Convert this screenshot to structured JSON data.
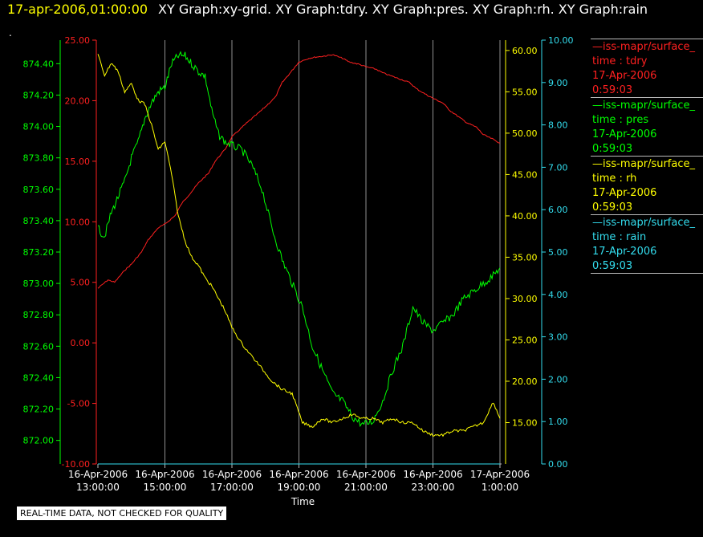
{
  "header": {
    "timestamp": "17-apr-2006,01:00:00",
    "graphs": "XY Graph:xy-grid.  XY Graph:tdry.  XY Graph:pres.  XY Graph:rh.  XY Graph:rain"
  },
  "marker": ".",
  "footer": "REAL-TIME DATA, NOT CHECKED FOR QUALITY",
  "legend": [
    {
      "source": "—iss-mapr/surface_",
      "var": "time : tdry",
      "date": "17-Apr-2006",
      "time": "0:59:03",
      "color": "#ff2020"
    },
    {
      "source": "—iss-mapr/surface_",
      "var": "time : pres",
      "date": "17-Apr-2006",
      "time": "0:59:03",
      "color": "#00ff00"
    },
    {
      "source": "—iss-mapr/surface_",
      "var": "time : rh",
      "date": "17-Apr-2006",
      "time": "0:59:03",
      "color": "#ffff00"
    },
    {
      "source": "—iss-mapr/surface_",
      "var": "time : rain",
      "date": "17-Apr-2006",
      "time": "0:59:03",
      "color": "#33ddee"
    }
  ],
  "chart_data": {
    "type": "line",
    "title": "",
    "xlabel": "Time",
    "x_ticks": [
      {
        "date": "16-Apr-2006",
        "time": "13:00:00",
        "h": 0
      },
      {
        "date": "16-Apr-2006",
        "time": "15:00:00",
        "h": 2
      },
      {
        "date": "16-Apr-2006",
        "time": "17:00:00",
        "h": 4
      },
      {
        "date": "16-Apr-2006",
        "time": "19:00:00",
        "h": 6
      },
      {
        "date": "16-Apr-2006",
        "time": "21:00:00",
        "h": 8
      },
      {
        "date": "16-Apr-2006",
        "time": "23:00:00",
        "h": 10
      },
      {
        "date": "17-Apr-2006",
        "time": "1:00:00",
        "h": 12
      }
    ],
    "xlim": [
      0,
      12
    ],
    "grid": "vertical",
    "axes": [
      {
        "series": "pres",
        "side": "left",
        "color": "#00ff00",
        "ylim": [
          871.85,
          874.55
        ],
        "ticks": [
          "872.00",
          "872.20",
          "872.40",
          "872.60",
          "872.80",
          "873.00",
          "873.20",
          "873.40",
          "873.60",
          "873.80",
          "874.00",
          "874.20",
          "874.40"
        ]
      },
      {
        "series": "tdry",
        "side": "left",
        "color": "#ff2020",
        "ylim": [
          -10,
          25
        ],
        "ticks": [
          "-10.00",
          "-5.00",
          "0.00",
          "5.00",
          "10.00",
          "15.00",
          "20.00",
          "25.00"
        ]
      },
      {
        "series": "rh",
        "side": "right",
        "color": "#ffff00",
        "ylim": [
          10,
          61.25
        ],
        "ticks": [
          "15.00",
          "20.00",
          "25.00",
          "30.00",
          "35.00",
          "40.00",
          "45.00",
          "50.00",
          "55.00",
          "60.00"
        ]
      },
      {
        "series": "rain",
        "side": "right",
        "color": "#33ddee",
        "ylim": [
          0,
          10
        ],
        "ticks": [
          "0.00",
          "1.00",
          "2.00",
          "3.00",
          "4.00",
          "5.00",
          "6.00",
          "7.00",
          "8.00",
          "9.00",
          "10.00"
        ]
      }
    ],
    "series": [
      {
        "name": "tdry",
        "color": "#ff2020",
        "x": [
          0,
          0.3,
          0.5,
          0.8,
          1.0,
          1.3,
          1.5,
          1.8,
          2.0,
          2.3,
          2.5,
          2.8,
          3.0,
          3.3,
          3.5,
          3.8,
          4.0,
          4.3,
          4.5,
          4.8,
          5.0,
          5.3,
          5.5,
          5.8,
          6.0,
          6.3,
          6.5,
          6.8,
          7.0,
          7.3,
          7.5,
          7.8,
          8.0,
          8.3,
          8.5,
          8.8,
          9.0,
          9.3,
          9.5,
          9.8,
          10.0,
          10.3,
          10.5,
          10.8,
          11.0,
          11.3,
          11.5,
          11.8,
          12.0
        ],
        "y": [
          4.5,
          5.2,
          5.0,
          6.0,
          6.5,
          7.5,
          8.5,
          9.5,
          9.8,
          10.5,
          11.5,
          12.5,
          13.2,
          14.0,
          15.0,
          16.0,
          17.0,
          17.8,
          18.3,
          19.0,
          19.5,
          20.3,
          21.5,
          22.5,
          23.2,
          23.5,
          23.6,
          23.7,
          23.8,
          23.5,
          23.2,
          23.0,
          22.8,
          22.6,
          22.3,
          22.0,
          21.8,
          21.5,
          21.0,
          20.5,
          20.2,
          19.8,
          19.2,
          18.6,
          18.2,
          17.8,
          17.2,
          16.8,
          16.5
        ]
      },
      {
        "series_note": "",
        "name": "pres",
        "color": "#00ff00",
        "x": [
          0,
          0.2,
          0.4,
          0.6,
          0.8,
          1.0,
          1.2,
          1.4,
          1.6,
          1.8,
          2.0,
          2.2,
          2.4,
          2.6,
          2.8,
          3.0,
          3.2,
          3.4,
          3.6,
          3.8,
          4.0,
          4.3,
          4.6,
          4.9,
          5.2,
          5.5,
          5.8,
          6.1,
          6.4,
          6.7,
          7.0,
          7.3,
          7.6,
          7.9,
          8.2,
          8.5,
          8.8,
          9.1,
          9.4,
          9.7,
          10.0,
          10.3,
          10.6,
          10.9,
          11.2,
          11.5,
          11.8,
          12.0
        ],
        "y": [
          873.35,
          873.3,
          873.45,
          873.55,
          873.65,
          873.8,
          873.9,
          874.05,
          874.15,
          874.22,
          874.25,
          874.4,
          874.45,
          874.45,
          874.4,
          874.35,
          874.32,
          874.1,
          873.95,
          873.9,
          873.88,
          873.85,
          873.75,
          873.6,
          873.35,
          873.15,
          873.0,
          872.85,
          872.6,
          872.45,
          872.3,
          872.25,
          872.15,
          872.1,
          872.12,
          872.25,
          872.45,
          872.6,
          872.85,
          872.75,
          872.7,
          872.75,
          872.8,
          872.9,
          872.95,
          873.0,
          873.05,
          873.1
        ]
      },
      {
        "name": "rh",
        "color": "#ffff00",
        "x": [
          0,
          0.2,
          0.4,
          0.6,
          0.8,
          1.0,
          1.2,
          1.4,
          1.6,
          1.8,
          2.0,
          2.2,
          2.4,
          2.6,
          2.8,
          3.0,
          3.2,
          3.4,
          3.6,
          3.8,
          4.0,
          4.3,
          4.6,
          4.9,
          5.2,
          5.5,
          5.8,
          6.1,
          6.4,
          6.7,
          7.0,
          7.3,
          7.6,
          7.9,
          8.2,
          8.5,
          8.8,
          9.1,
          9.4,
          9.7,
          10.0,
          10.3,
          10.6,
          10.9,
          11.2,
          11.5,
          11.8,
          12.0
        ],
        "y": [
          59.5,
          57.0,
          58.5,
          57.5,
          55.0,
          56.0,
          54.0,
          53.5,
          51.0,
          48.0,
          49.0,
          45.0,
          40.0,
          37.0,
          35.0,
          34.0,
          32.5,
          31.5,
          30.0,
          28.5,
          26.5,
          24.5,
          23.0,
          21.5,
          20.0,
          19.0,
          18.5,
          15.0,
          14.5,
          15.5,
          15.0,
          15.5,
          16.0,
          15.5,
          15.5,
          15.0,
          15.5,
          15.0,
          15.0,
          14.0,
          13.5,
          13.5,
          14.0,
          14.0,
          14.5,
          15.0,
          17.5,
          15.5
        ]
      },
      {
        "name": "rain",
        "color": "#33ddee",
        "x": [
          0,
          12
        ],
        "y": [
          0,
          0
        ]
      }
    ]
  }
}
